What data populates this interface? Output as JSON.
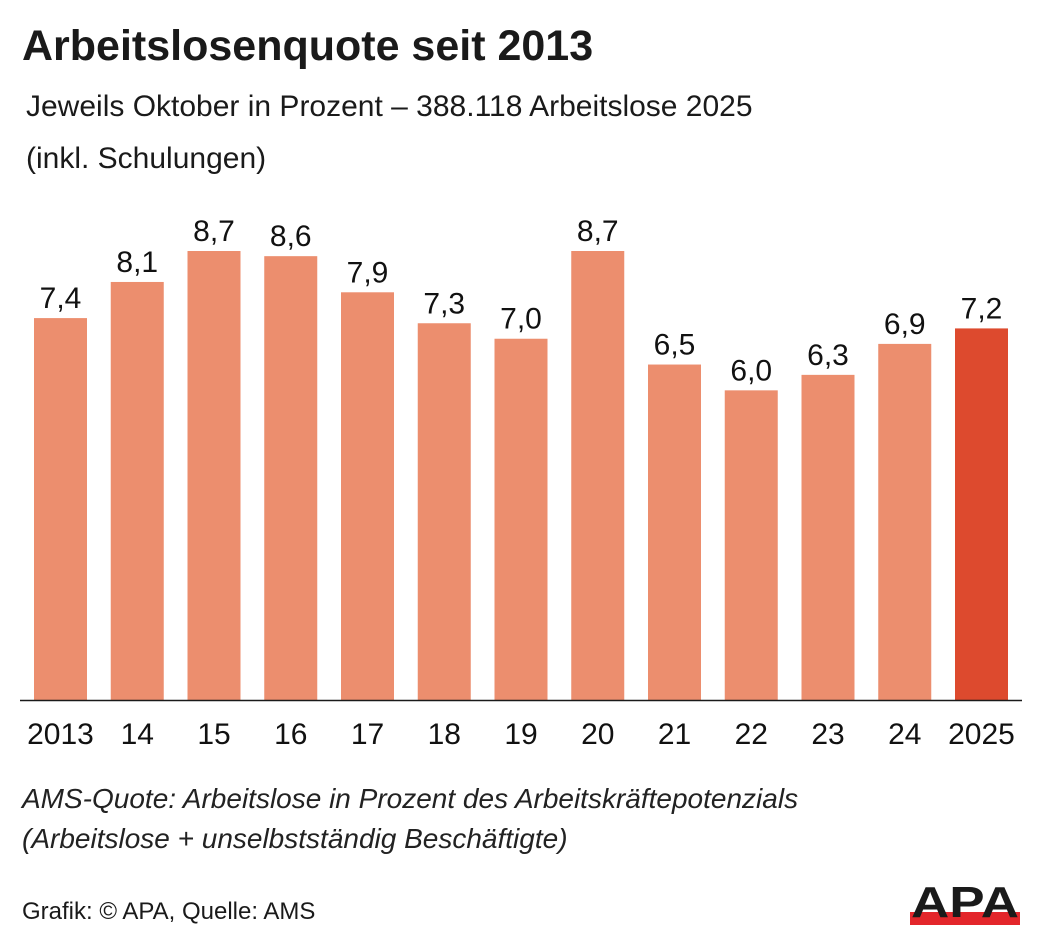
{
  "chart_data": {
    "type": "bar",
    "title": "Arbeitslosenquote seit 2013",
    "subtitle": [
      "Jeweils Oktober in Prozent – 388.118 Arbeitslose 2025",
      "(inkl. Schulungen)"
    ],
    "categories": [
      "2013",
      "14",
      "15",
      "16",
      "17",
      "18",
      "19",
      "20",
      "21",
      "22",
      "23",
      "24",
      "2025"
    ],
    "values": [
      7.4,
      8.1,
      8.7,
      8.6,
      7.9,
      7.3,
      7.0,
      8.7,
      6.5,
      6.0,
      6.3,
      6.9,
      7.2
    ],
    "data_labels": [
      "7,4",
      "8,1",
      "8,7",
      "8,6",
      "7,9",
      "7,3",
      "7,0",
      "8,7",
      "6,5",
      "6,0",
      "6,3",
      "6,9",
      "7,2"
    ],
    "highlight_index": 12,
    "colors": {
      "bar": "#EC8E6E",
      "highlight": "#DD4A2E",
      "baseline": "#1a1a1a"
    },
    "ylim": [
      0,
      8.7
    ],
    "grid": false,
    "xlabel": "",
    "ylabel": ""
  },
  "notes": [
    "AMS-Quote: Arbeitslose in Prozent des Arbeitskräftepotenzials",
    "(Arbeitslose + unselbstständig Beschäftigte)"
  ],
  "credit": "Grafik: © APA, Quelle: AMS",
  "logo": {
    "text": "APA",
    "text_color": "#1a1a1a",
    "bar_color": "#E3262B"
  }
}
